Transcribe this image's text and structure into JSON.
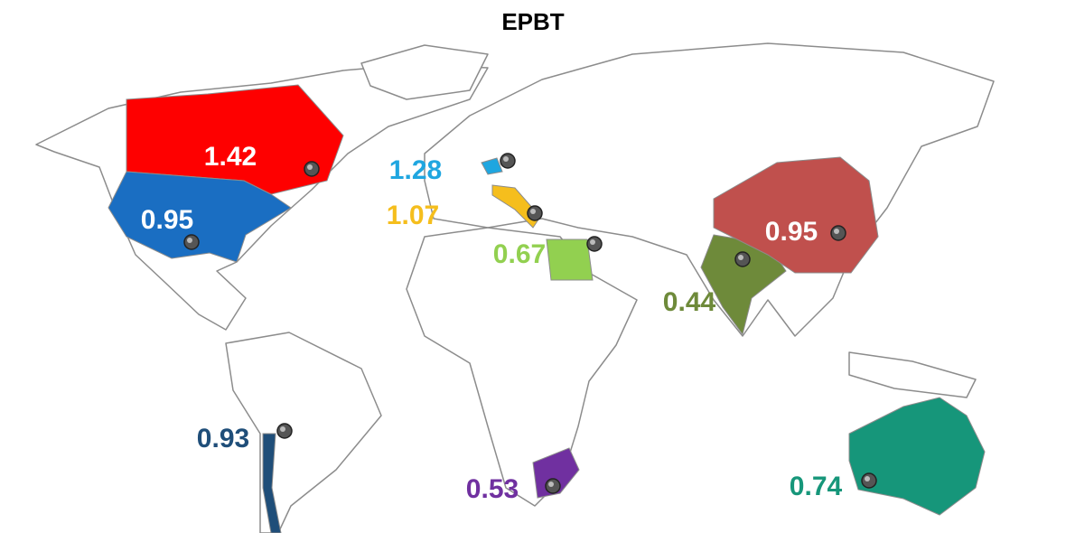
{
  "title": "EPBT",
  "regions": [
    {
      "value": 1.42,
      "color": "#fe0000"
    },
    {
      "value": 0.95,
      "color": "#1a6ec2"
    },
    {
      "value": 1.28,
      "color": "#1fa6e0"
    },
    {
      "value": 1.07,
      "color": "#f5be1d"
    },
    {
      "value": 0.67,
      "color": "#92d050"
    },
    {
      "value": 0.44,
      "color": "#6e8a3a"
    },
    {
      "value": 0.95,
      "color": "#c0504d"
    },
    {
      "value": 0.93,
      "color": "#1f4e79"
    },
    {
      "value": 0.53,
      "color": "#7030a0"
    },
    {
      "value": 0.74,
      "color": "#16967a"
    }
  ]
}
